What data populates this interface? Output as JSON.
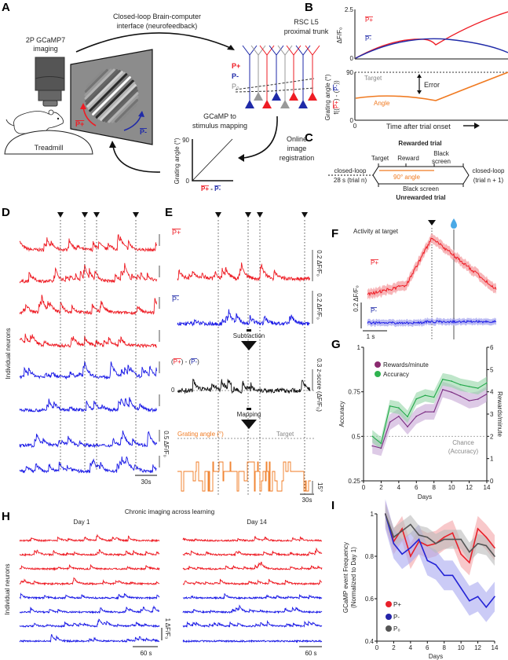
{
  "panel_labels": [
    "A",
    "B",
    "C",
    "D",
    "E",
    "F",
    "G",
    "H",
    "I"
  ],
  "panelA": {
    "loop_line1": "Closed-loop Brain-computer",
    "loop_line2": "interface (neurofeedback)",
    "imaging_line1": "2P GCaMP7",
    "imaging_line2": "imaging",
    "treadmill": "Treadmill",
    "arrow_p_plus": "P+",
    "arrow_p_minus": "P-",
    "rsc_line1": "RSC L5",
    "rsc_line2": "proximal trunk",
    "pop_p_plus": "P+",
    "pop_p_minus": "P-",
    "pop_p_zero": "P₀",
    "mapping_line1": "GCaMP to",
    "mapping_line2": "stimulus mapping",
    "mapping_ylabel": "Grating angle (°)",
    "mapping_y_top": "90",
    "mapping_y_bottom": "0",
    "mapping_x_plus": "P+",
    "mapping_x_dash": "-",
    "mapping_x_minus": "P-",
    "registration": [
      "Online",
      "image",
      "registration"
    ],
    "colors": {
      "p_plus": "#ee1c24",
      "p_minus": "#1f2aa8",
      "p_zero": "#888888"
    }
  },
  "panelB": {
    "top_ylabel": "ΔF/F₀",
    "top_y_max": "2.5",
    "top_y_min": "0",
    "legend_p_plus": "P+",
    "legend_p_minus": "P-",
    "bottom_ylabel": "Grating angle (°)",
    "bottom_ylabel2_a": "f((",
    "bottom_ylabel2_plus": "P+",
    "bottom_ylabel2_b": ") - (",
    "bottom_ylabel2_minus": "P-",
    "bottom_ylabel2_c": "))",
    "bottom_y_max": "90",
    "bottom_y_min": "0",
    "x_zero": "0",
    "target": "Target",
    "error": "Error",
    "angle": "Angle",
    "xlabel": "Time after trial onset"
  },
  "panelC": {
    "rewarded": "Rewarded trial",
    "target": "Target",
    "reward": "Reward",
    "black_line1": "Black",
    "black_line2": "screen",
    "left_line1": "closed-loop",
    "left_line2": "28 s (trial n)",
    "angle": "90° angle",
    "right_line1": "closed-loop",
    "right_line2": "(trial n + 1)",
    "black_screen": "Black screen",
    "unrewarded": "Unrewarded trial"
  },
  "panelD": {
    "ylabel": "Individual neurons",
    "scale_y": "0.5 ΔF/F₀",
    "scale_x": "30s",
    "trace_colors": [
      "#ee1c24",
      "#ee1c24",
      "#ee1c24",
      "#ee1c24",
      "#1a1ae6",
      "#1a1ae6",
      "#1a1ae6",
      "#1a1ae6"
    ]
  },
  "panelE": {
    "p_plus": "P+",
    "p_minus": "P-",
    "scale_p_plus": "0.2 ΔF/F₀",
    "scale_p_minus": "0.2 ΔF/F₀",
    "subtraction": "Subtraction",
    "diff_a": "(",
    "diff_plus": "P+",
    "diff_b": ") - (",
    "diff_minus": "P-",
    "diff_c": ")",
    "zero": "0",
    "scale_z": "0.3 z-score (ΔF/F₀)",
    "mapping": "Mapping",
    "grating_angle": "Grating angle (°)",
    "target": "Target",
    "scale_angle": "15°",
    "scale_time": "30s"
  },
  "panelF": {
    "title": "Activity at target",
    "p_plus": "P+",
    "p_minus": "P-",
    "scale_y": "0.2 ΔF/F₀",
    "scale_x": "1 s",
    "icons": [
      "target-arrowhead-icon",
      "reward-droplet-icon"
    ]
  },
  "panelH": {
    "title": "Chronic imaging across learning",
    "day1": "Day 1",
    "day14": "Day 14",
    "ylabel": "Individual neurons",
    "scale_y": "1 ΔF/F₀",
    "scale_x_day1": "60 s",
    "scale_x_day14": "60 s"
  },
  "chart_data": [
    {
      "type": "line",
      "panel": "G",
      "xlabel": "Days",
      "ylabel": "Accuracy",
      "ylabel_right": "Rewards/minute",
      "xlim": [
        0,
        14
      ],
      "ylim": [
        0.25,
        1
      ],
      "ylim_right": [
        0,
        6
      ],
      "x_ticks": [
        "0",
        "2",
        "4",
        "6",
        "8",
        "10",
        "12",
        "14"
      ],
      "y_ticks": [
        "0.25",
        "0.5",
        "0.75",
        "1"
      ],
      "y_ticks_right": [
        "0",
        "1",
        "2",
        "3",
        "4",
        "5",
        "6"
      ],
      "legend_placement": "top-left",
      "annotation_line1": "Chance",
      "annotation_line2": "(Accuracy)",
      "chance_level": 0.5,
      "x": [
        1,
        2,
        3,
        4,
        5,
        6,
        7,
        8,
        9,
        10,
        11,
        12,
        13,
        14
      ],
      "series": [
        {
          "name": "Rewards/minute",
          "axis": "right",
          "color": "#7b2d82",
          "band_color": "#c7a6d6",
          "sem": 0.35,
          "values": [
            1.57,
            1.47,
            2.64,
            2.9,
            2.43,
            2.9,
            3.1,
            3.1,
            4.1,
            3.98,
            3.8,
            3.6,
            3.67,
            3.9
          ]
        },
        {
          "name": "Accuracy",
          "axis": "left",
          "color": "#22a84a",
          "band_color": "#95d6a6",
          "sem": 0.035,
          "values": [
            0.5,
            0.46,
            0.67,
            0.66,
            0.61,
            0.71,
            0.73,
            0.72,
            0.82,
            0.81,
            0.79,
            0.78,
            0.77,
            0.8
          ]
        }
      ]
    },
    {
      "type": "line",
      "panel": "I",
      "xlabel": "Days",
      "ylabel_line1": "GCaMP event Frequency",
      "ylabel_line2": "(Normalized to Day 1)",
      "xlim": [
        0,
        14
      ],
      "ylim": [
        0.4,
        1.0
      ],
      "x_ticks": [
        "0",
        "2",
        "4",
        "6",
        "8",
        "10",
        "12",
        "14"
      ],
      "y_ticks": [
        "0.4",
        "0.6",
        "0.8",
        "1"
      ],
      "legend_placement": "bottom-left",
      "x": [
        1,
        2,
        3,
        4,
        5,
        6,
        7,
        8,
        9,
        10,
        11,
        12,
        13,
        14
      ],
      "series": [
        {
          "name": "P+",
          "color": "#e8202a",
          "band_color": "#f4a3a6",
          "sem": 0.06,
          "values": [
            1.0,
            0.87,
            0.93,
            0.8,
            0.87,
            0.85,
            0.86,
            0.89,
            0.91,
            0.81,
            0.77,
            0.93,
            0.89,
            0.84
          ]
        },
        {
          "name": "P-",
          "color": "#2424d6",
          "band_color": "#a9a9f0",
          "sem": 0.07,
          "values": [
            1.0,
            0.86,
            0.81,
            0.84,
            0.88,
            0.78,
            0.76,
            0.71,
            0.71,
            0.65,
            0.59,
            0.61,
            0.56,
            0.61
          ]
        },
        {
          "name": "P₀",
          "color": "#555555",
          "band_color": "#bbbbbb",
          "sem": 0.045,
          "values": [
            1.0,
            0.89,
            0.92,
            0.95,
            0.9,
            0.89,
            0.86,
            0.88,
            0.88,
            0.88,
            0.82,
            0.86,
            0.85,
            0.8
          ]
        }
      ]
    }
  ]
}
